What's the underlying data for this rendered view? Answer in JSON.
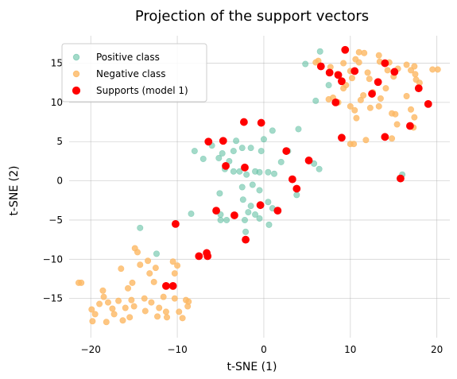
{
  "chart_data": {
    "type": "scatter",
    "title": "Projection of the support vectors",
    "xlabel": "t-SNE (1)",
    "ylabel": "t-SNE (2)",
    "xlim": [
      -22.5,
      21.5
    ],
    "ylim": [
      -20,
      18.5
    ],
    "xticks": [
      -20,
      -10,
      0,
      10,
      20
    ],
    "yticks": [
      -15,
      -10,
      -5,
      0,
      5,
      10,
      15
    ],
    "xtick_labels": [
      "−20",
      "−10",
      "0",
      "10",
      "20"
    ],
    "ytick_labels": [
      "−15",
      "−10",
      "−5",
      "0",
      "5",
      "10",
      "15"
    ],
    "grid": true,
    "legend_position": "upper-left",
    "series": [
      {
        "name": "Positive class",
        "color": "#66c2a5",
        "alpha": 0.6,
        "points": [
          [
            6.5,
            16.5
          ],
          [
            4.8,
            14.9
          ],
          [
            6,
            10.2
          ],
          [
            7.5,
            12.2
          ],
          [
            16,
            0.8
          ],
          [
            15.7,
            0.3
          ],
          [
            -8,
            3.8
          ],
          [
            -7,
            2.8
          ],
          [
            -6,
            4.5
          ],
          [
            -5.2,
            2.9
          ],
          [
            -4.8,
            3.5
          ],
          [
            -4,
            2.5
          ],
          [
            -3.5,
            3.8
          ],
          [
            -3.2,
            5.1
          ],
          [
            -2.5,
            4.2
          ],
          [
            -1.5,
            4.2
          ],
          [
            -1,
            1.2
          ],
          [
            -0.5,
            1.1
          ],
          [
            -0.3,
            3.8
          ],
          [
            0,
            5.3
          ],
          [
            1,
            6.4
          ],
          [
            -4.5,
            1.5
          ],
          [
            -3.5,
            1.2
          ],
          [
            -2.8,
            1.2
          ],
          [
            -2,
            0.8
          ],
          [
            -2.5,
            -0.8
          ],
          [
            -1.3,
            -0.5
          ],
          [
            -0.5,
            -1.2
          ],
          [
            0.5,
            1.1
          ],
          [
            1.2,
            0.9
          ],
          [
            2,
            2.4
          ],
          [
            2.8,
            3.8
          ],
          [
            4,
            6.6
          ],
          [
            5.8,
            2.2
          ],
          [
            6.4,
            1.5
          ],
          [
            3.8,
            -1.8
          ],
          [
            -5.1,
            -1.6
          ],
          [
            -5,
            -4.3
          ],
          [
            -5,
            -5
          ],
          [
            -4.3,
            -5
          ],
          [
            -2.4,
            -2.4
          ],
          [
            -1.8,
            -4
          ],
          [
            -1.5,
            -3.2
          ],
          [
            -1,
            -4.3
          ],
          [
            -0.5,
            -4.8
          ],
          [
            0.5,
            -2.7
          ],
          [
            1,
            -3.5
          ],
          [
            -2.2,
            -5
          ],
          [
            -2.1,
            -6.5
          ],
          [
            0.6,
            -5.6
          ],
          [
            -8.4,
            -4.2
          ],
          [
            -12.4,
            -9.3
          ],
          [
            -14.3,
            -6
          ]
        ]
      },
      {
        "name": "Negative class",
        "color": "#fdb863",
        "alpha": 0.8,
        "points": [
          [
            -21.1,
            -13
          ],
          [
            -21.4,
            -13
          ],
          [
            -19.9,
            -16.4
          ],
          [
            -19.8,
            -17.9
          ],
          [
            -19.5,
            -17
          ],
          [
            -19,
            -15.7
          ],
          [
            -18.6,
            -14
          ],
          [
            -18.5,
            -14.8
          ],
          [
            -18.2,
            -18
          ],
          [
            -18,
            -15.5
          ],
          [
            -17.5,
            -16.3
          ],
          [
            -17.3,
            -17
          ],
          [
            -16.8,
            -15.3
          ],
          [
            -16.5,
            -11.2
          ],
          [
            -16.3,
            -17.8
          ],
          [
            -16,
            -16.2
          ],
          [
            -15.7,
            -13.7
          ],
          [
            -15.5,
            -17.4
          ],
          [
            -15.2,
            -13
          ],
          [
            -15.3,
            -15.2
          ],
          [
            -15,
            -16
          ],
          [
            -14.9,
            -8.6
          ],
          [
            -14.6,
            -9.1
          ],
          [
            -14.3,
            -10.7
          ],
          [
            -13.8,
            -15
          ],
          [
            -13.7,
            -16.6
          ],
          [
            -13.4,
            -10.2
          ],
          [
            -13,
            -15.5
          ],
          [
            -13.2,
            -11.8
          ],
          [
            -12.7,
            -12.9
          ],
          [
            -12.5,
            -11.1
          ],
          [
            -12.3,
            -17.3
          ],
          [
            -12.1,
            -16.2
          ],
          [
            -11.6,
            -14.8
          ],
          [
            -11.3,
            -16.7
          ],
          [
            -11.2,
            -17.4
          ],
          [
            -10.5,
            -10.3
          ],
          [
            -10.5,
            -13.5
          ],
          [
            -10.3,
            -15
          ],
          [
            -9.8,
            -16.7
          ],
          [
            -9.4,
            -17.5
          ],
          [
            -9,
            -15.2
          ],
          [
            -8.8,
            -16
          ],
          [
            -8.7,
            -15.4
          ],
          [
            -10,
            -10.8
          ],
          [
            -10.3,
            -11.8
          ],
          [
            6,
            15.1
          ],
          [
            6.3,
            15.3
          ],
          [
            7.7,
            14.5
          ],
          [
            8.5,
            13.6
          ],
          [
            9,
            12.8
          ],
          [
            9.2,
            15
          ],
          [
            9.5,
            12.2
          ],
          [
            10,
            14
          ],
          [
            10.2,
            13.1
          ],
          [
            10.6,
            15.5
          ],
          [
            11,
            15.1
          ],
          [
            11,
            16.4
          ],
          [
            11.6,
            16.3
          ],
          [
            12,
            13.8
          ],
          [
            12.2,
            13
          ],
          [
            13.3,
            16
          ],
          [
            13.4,
            15.2
          ],
          [
            14.3,
            14.1
          ],
          [
            14.5,
            15.1
          ],
          [
            15,
            13.3
          ],
          [
            15.5,
            14.3
          ],
          [
            16.5,
            14.8
          ],
          [
            17,
            14.1
          ],
          [
            17.4,
            14.6
          ],
          [
            17.5,
            13.6
          ],
          [
            17.6,
            12.9
          ],
          [
            18,
            12.5
          ],
          [
            19.5,
            14.2
          ],
          [
            20.1,
            14.2
          ],
          [
            7.5,
            10.4
          ],
          [
            8,
            10.6
          ],
          [
            8.6,
            10
          ],
          [
            9.2,
            11.8
          ],
          [
            10,
            9.5
          ],
          [
            10.5,
            9
          ],
          [
            10.7,
            8
          ],
          [
            11.2,
            10.3
          ],
          [
            11.5,
            10.9
          ],
          [
            12.3,
            9.3
          ],
          [
            12.6,
            11.3
          ],
          [
            13.3,
            9.5
          ],
          [
            13.5,
            10.5
          ],
          [
            14.1,
            11.8
          ],
          [
            14.8,
            8.6
          ],
          [
            15.2,
            8.5
          ],
          [
            15.4,
            7.2
          ],
          [
            16.5,
            10.8
          ],
          [
            17,
            9.1
          ],
          [
            17.4,
            8.1
          ],
          [
            17.3,
            6.8
          ],
          [
            10,
            4.7
          ],
          [
            10.4,
            4.7
          ],
          [
            11.8,
            5.2
          ],
          [
            14.8,
            5.4
          ]
        ]
      },
      {
        "name": "Supports (model 1)",
        "color": "#ff0000",
        "alpha": 1,
        "points": [
          [
            9.4,
            16.7
          ],
          [
            6.6,
            14.6
          ],
          [
            7.6,
            13.8
          ],
          [
            8.6,
            13.5
          ],
          [
            9,
            12.7
          ],
          [
            10.5,
            14
          ],
          [
            13.2,
            12.6
          ],
          [
            14,
            15
          ],
          [
            15.1,
            13.9
          ],
          [
            12.5,
            11.1
          ],
          [
            8.3,
            10
          ],
          [
            17.9,
            11.8
          ],
          [
            19,
            9.8
          ],
          [
            16.9,
            7
          ],
          [
            14,
            5.6
          ],
          [
            15.8,
            0.3
          ],
          [
            9,
            5.5
          ],
          [
            -6.4,
            5
          ],
          [
            -4.7,
            5.1
          ],
          [
            -2.3,
            7.5
          ],
          [
            -0.3,
            7.4
          ],
          [
            2.6,
            3.8
          ],
          [
            5.2,
            2.6
          ],
          [
            -4.4,
            1.9
          ],
          [
            -2.2,
            1.7
          ],
          [
            3.3,
            0.2
          ],
          [
            3.8,
            -1
          ],
          [
            -5.5,
            -3.8
          ],
          [
            -3.4,
            -4.4
          ],
          [
            -0.4,
            -3.1
          ],
          [
            1.6,
            -3.8
          ],
          [
            -2.1,
            -7.5
          ],
          [
            -6.6,
            -9.2
          ],
          [
            -7.5,
            -9.6
          ],
          [
            -6.5,
            -9.6
          ],
          [
            -10.2,
            -5.5
          ],
          [
            -11.3,
            -13.4
          ],
          [
            -10.5,
            -13.4
          ]
        ]
      }
    ]
  }
}
